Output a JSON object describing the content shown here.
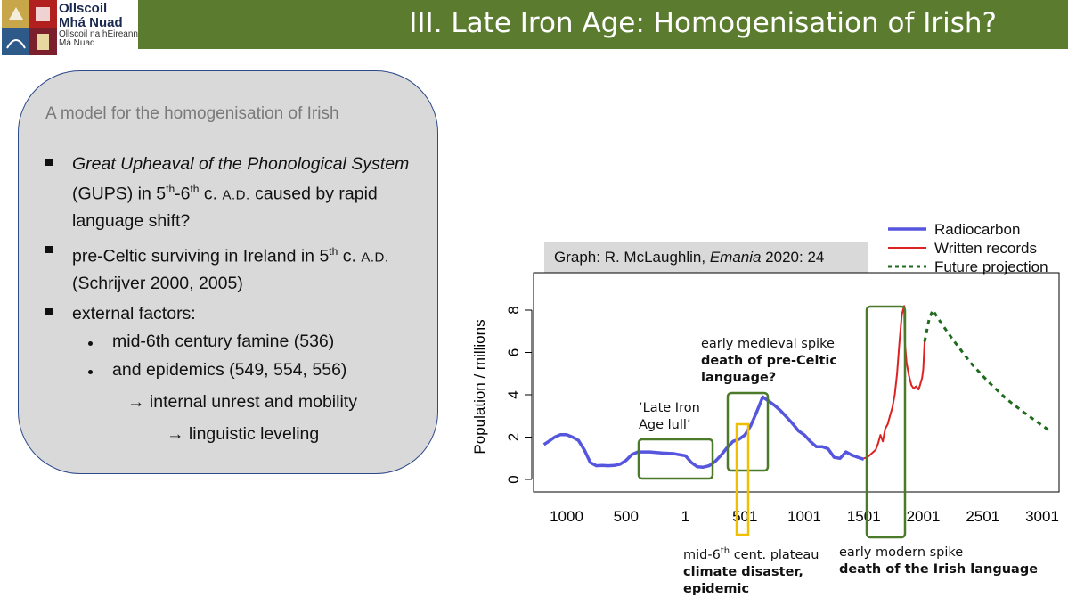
{
  "header": {
    "logo_line1": "Ollscoil",
    "logo_line2": "Mhá Nuad",
    "logo_line3": "Ollscoil na hÉireann",
    "logo_line4": "Má Nuad",
    "title": "III. Late Iron Age: Homogenisation of Irish?"
  },
  "box": {
    "heading": "A model for the homogenisation of Irish",
    "bullet1_italic": "Great Upheaval of the Phonological System",
    "bullet1_rest1": " (GUPS) in 5",
    "bullet1_sup1": "th",
    "bullet1_mid": "-6",
    "bullet1_sup2": "th",
    "bullet1_rest2": " c. ",
    "bullet1_sc": "A.D.",
    "bullet1_rest3": " caused by rapid language shift?",
    "bullet2_a": "pre-Celtic surviving in Ireland in 5",
    "bullet2_sup": "th",
    "bullet2_b": " c. ",
    "bullet2_sc": "A.D.",
    "bullet2_c": " (Schrijver 2000, 2005)",
    "bullet3": "external factors:",
    "sub1": "mid-6th century famine (536)",
    "sub2": "and epidemics (549, 554, 556)",
    "arrow1": "→ internal unrest and mobility",
    "arrow2": "→ linguistic leveling"
  },
  "credit": {
    "prefix": "Graph: R. McLaughlin, ",
    "journal": "Emania",
    "suffix": " 2020: 24"
  },
  "chart_data": {
    "type": "line",
    "ylabel": "Population / millions",
    "xticks": [
      "1000",
      "500",
      "1",
      "501",
      "1001",
      "1501",
      "2001",
      "2501",
      "3001"
    ],
    "yticks": [
      "0",
      "2",
      "4",
      "6",
      "8"
    ],
    "ylim": [
      0,
      8.3
    ],
    "series": [
      {
        "name": "Radiocarbon",
        "color": "#5555dd",
        "x": [
          -1190,
          -1150,
          -1100,
          -1050,
          -1000,
          -950,
          -900,
          -850,
          -800,
          -750,
          -700,
          -650,
          -600,
          -550,
          -500,
          -450,
          -400,
          -300,
          -200,
          -100,
          0,
          50,
          100,
          150,
          200,
          250,
          300,
          350,
          400,
          450,
          500,
          550,
          600,
          650,
          700,
          750,
          800,
          850,
          900,
          950,
          1000,
          1050,
          1100,
          1150,
          1200,
          1250,
          1300,
          1350,
          1400,
          1450,
          1500
        ],
        "values": [
          1.65,
          1.8,
          2.0,
          2.12,
          2.12,
          2.0,
          1.85,
          1.4,
          0.8,
          0.65,
          0.66,
          0.65,
          0.66,
          0.72,
          0.9,
          1.18,
          1.3,
          1.3,
          1.25,
          1.22,
          1.12,
          0.8,
          0.6,
          0.58,
          0.65,
          0.85,
          1.15,
          1.5,
          1.8,
          1.9,
          2.1,
          2.55,
          3.2,
          3.9,
          3.7,
          3.5,
          3.25,
          2.95,
          2.65,
          2.3,
          2.1,
          1.8,
          1.55,
          1.55,
          1.45,
          1.05,
          1.0,
          1.3,
          1.15,
          1.05,
          0.95
        ]
      },
      {
        "name": "Written records",
        "color": "#dd2222",
        "x": [
          1500,
          1530,
          1560,
          1600,
          1620,
          1640,
          1660,
          1680,
          1700,
          1720,
          1740,
          1760,
          1780,
          1800,
          1820,
          1840,
          1845,
          1860,
          1880,
          1900,
          1920,
          1940,
          1960,
          1970,
          1980,
          1990,
          2000,
          2011
        ],
        "values": [
          1.0,
          1.05,
          1.2,
          1.4,
          1.7,
          2.1,
          1.8,
          2.4,
          2.6,
          3.0,
          3.4,
          4.0,
          5.0,
          6.5,
          7.8,
          8.2,
          6.5,
          5.5,
          4.9,
          4.45,
          4.3,
          4.4,
          4.25,
          4.4,
          4.6,
          4.8,
          5.2,
          6.5
        ]
      },
      {
        "name": "Future projection",
        "color": "#1e6b1e",
        "x": [
          2011,
          2050,
          2080,
          2150,
          2250,
          2400,
          2550,
          2700,
          2850,
          3000,
          3050
        ],
        "values": [
          6.5,
          7.6,
          8.0,
          7.4,
          6.6,
          5.5,
          4.6,
          3.8,
          3.15,
          2.55,
          2.35
        ]
      }
    ],
    "legend": "top-right",
    "annotations": {
      "lull_line1": "‘Late Iron",
      "lull_line2": "Age lull’",
      "emspike_line1": "early medieval spike",
      "emspike_line2": "death of pre-Celtic",
      "emspike_line3": "language?",
      "plateau_line1a": "mid-6",
      "plateau_line1sup": "th",
      "plateau_line1b": " cent. plateau",
      "plateau_line2": "climate disaster,",
      "plateau_line3": "epidemic",
      "modspike_line1": "early modern spike",
      "modspike_line2": "death of the Irish language"
    }
  }
}
